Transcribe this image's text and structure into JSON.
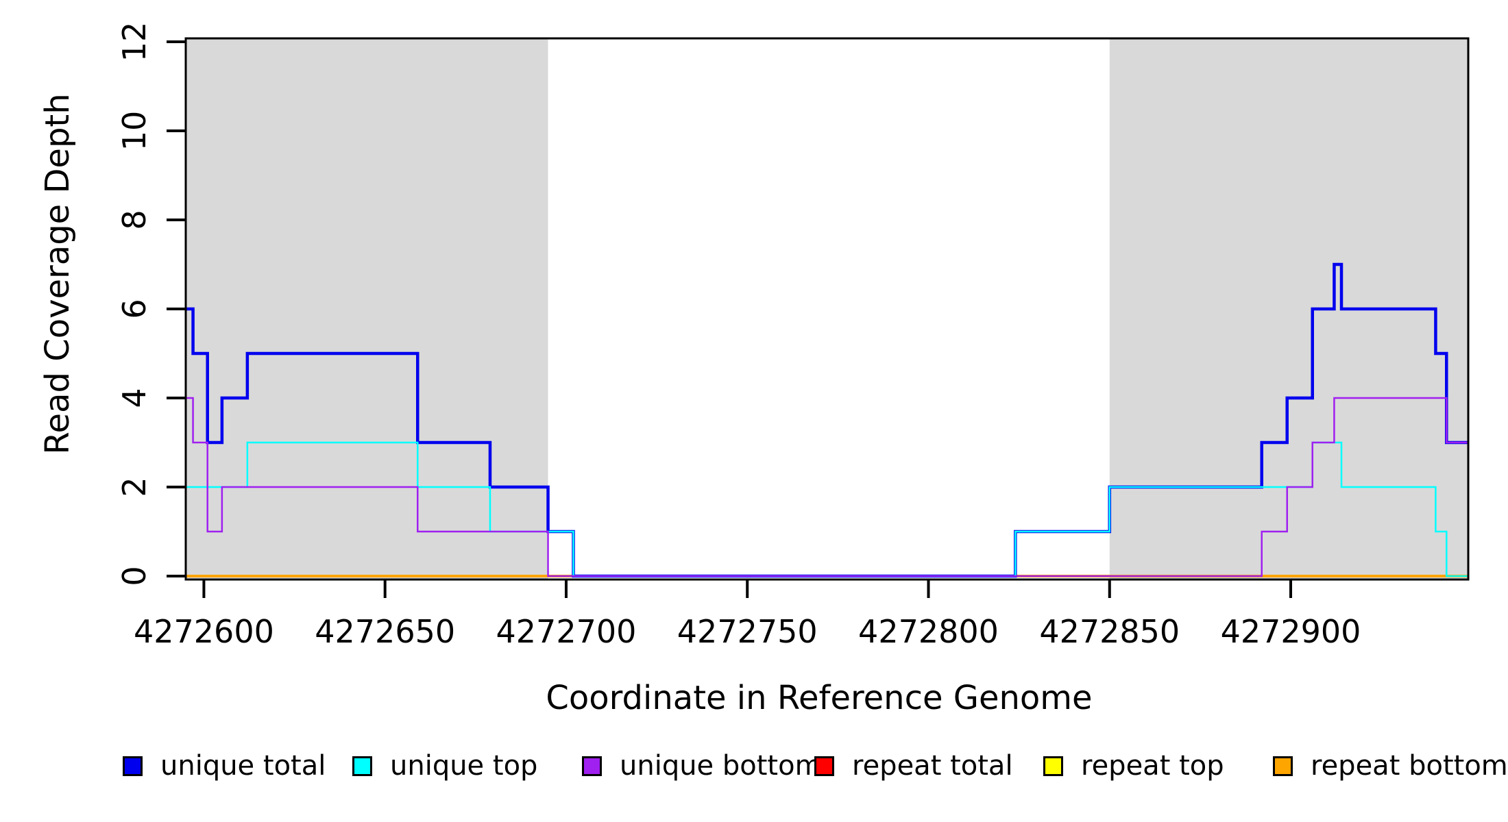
{
  "chart_data": {
    "type": "line",
    "subtype": "step-coverage",
    "title": "",
    "xlabel": "Coordinate in Reference Genome",
    "ylabel": "Read Coverage Depth",
    "xlim": [
      4272595,
      4272949
    ],
    "ylim": [
      0,
      12
    ],
    "grid": false,
    "x_ticks": [
      {
        "value": 4272600,
        "label": "4272600"
      },
      {
        "value": 4272650,
        "label": "4272650"
      },
      {
        "value": 4272700,
        "label": "4272700"
      },
      {
        "value": 4272750,
        "label": "4272750"
      },
      {
        "value": 4272800,
        "label": "4272800"
      },
      {
        "value": 4272850,
        "label": "4272850"
      },
      {
        "value": 4272900,
        "label": "4272900"
      }
    ],
    "y_ticks": [
      {
        "value": 0,
        "label": "0"
      },
      {
        "value": 2,
        "label": "2"
      },
      {
        "value": 4,
        "label": "4"
      },
      {
        "value": 6,
        "label": "6"
      },
      {
        "value": 8,
        "label": "8"
      },
      {
        "value": 10,
        "label": "10"
      },
      {
        "value": 12,
        "label": "12"
      }
    ],
    "shade_color": "#D9D9D9",
    "shaded_regions": [
      {
        "start": 4272595,
        "end": 4272695
      },
      {
        "start": 4272850,
        "end": 4272949
      }
    ],
    "series": [
      {
        "name": "repeat total",
        "color": "#FF0000",
        "width": 3.5,
        "steps": [
          [
            4272595,
            0
          ]
        ]
      },
      {
        "name": "repeat top",
        "color": "#FFFF00",
        "width": 2.5,
        "steps": [
          [
            4272595,
            0
          ]
        ]
      },
      {
        "name": "repeat bottom",
        "color": "#FFA500",
        "width": 4,
        "steps": [
          [
            4272595,
            0
          ]
        ]
      },
      {
        "name": "unique total",
        "color": "#0000EE",
        "width": 4.5,
        "steps": [
          [
            4272595,
            6
          ],
          [
            4272597,
            5
          ],
          [
            4272601,
            3
          ],
          [
            4272605,
            4
          ],
          [
            4272612,
            5
          ],
          [
            4272659,
            3
          ],
          [
            4272679,
            2
          ],
          [
            4272695,
            1
          ],
          [
            4272702,
            0
          ],
          [
            4272824,
            1
          ],
          [
            4272850,
            2
          ],
          [
            4272892,
            3
          ],
          [
            4272899,
            4
          ],
          [
            4272906,
            6
          ],
          [
            4272912,
            7
          ],
          [
            4272914,
            6
          ],
          [
            4272940,
            5
          ],
          [
            4272943,
            3
          ]
        ]
      },
      {
        "name": "unique top",
        "color": "#00FFFF",
        "width": 2.5,
        "steps": [
          [
            4272595,
            2
          ],
          [
            4272612,
            3
          ],
          [
            4272659,
            2
          ],
          [
            4272679,
            1
          ],
          [
            4272702,
            0
          ],
          [
            4272824,
            1
          ],
          [
            4272850,
            2
          ],
          [
            4272906,
            3
          ],
          [
            4272914,
            2
          ],
          [
            4272940,
            1
          ],
          [
            4272943,
            0
          ]
        ]
      },
      {
        "name": "unique bottom",
        "color": "#A020F0",
        "width": 2.5,
        "steps": [
          [
            4272595,
            4
          ],
          [
            4272597,
            3
          ],
          [
            4272601,
            1
          ],
          [
            4272605,
            2
          ],
          [
            4272659,
            1
          ],
          [
            4272695,
            0
          ],
          [
            4272892,
            1
          ],
          [
            4272899,
            2
          ],
          [
            4272906,
            3
          ],
          [
            4272912,
            4
          ],
          [
            4272943,
            3
          ]
        ]
      }
    ],
    "legend": [
      {
        "label": "unique total",
        "color": "#0000EE"
      },
      {
        "label": "unique top",
        "color": "#00FFFF"
      },
      {
        "label": "unique bottom",
        "color": "#A020F0"
      },
      {
        "label": "repeat total",
        "color": "#FF0000"
      },
      {
        "label": "repeat top",
        "color": "#FFFF00"
      },
      {
        "label": "repeat bottom",
        "color": "#FFA500"
      }
    ]
  }
}
